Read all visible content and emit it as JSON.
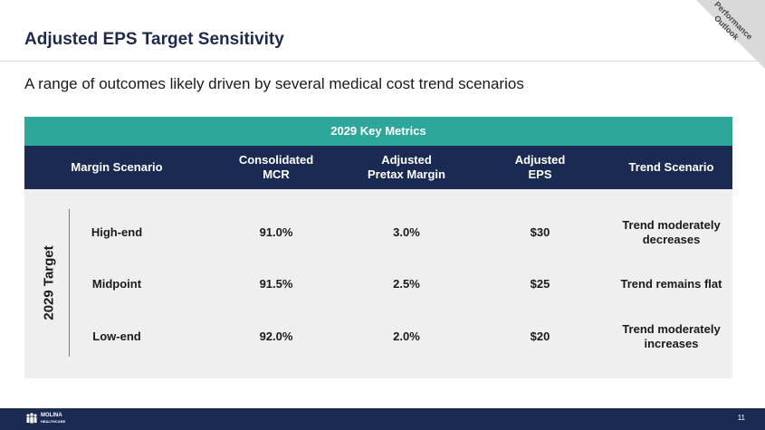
{
  "slide": {
    "title": "Adjusted EPS Target Sensitivity",
    "subtitle": "A range of outcomes likely driven by several medical cost trend scenarios",
    "corner_tab": {
      "line1": "Performance",
      "line2": "Outlook"
    },
    "page_number": "11"
  },
  "table": {
    "group_header": "2029 Key Metrics",
    "side_label": "2029 Target",
    "columns": [
      {
        "line1": "Margin Scenario",
        "line2": ""
      },
      {
        "line1": "Consolidated",
        "line2": "MCR"
      },
      {
        "line1": "Adjusted",
        "line2": "Pretax Margin"
      },
      {
        "line1": "Adjusted",
        "line2": "EPS"
      },
      {
        "line1": "Trend Scenario",
        "line2": ""
      }
    ],
    "rows": [
      {
        "scenario": "High-end",
        "mcr": "91.0%",
        "margin": "3.0%",
        "eps": "$30",
        "trend1": "Trend moderately",
        "trend2": "decreases"
      },
      {
        "scenario": "Midpoint",
        "mcr": "91.5%",
        "margin": "2.5%",
        "eps": "$25",
        "trend1": "Trend remains flat",
        "trend2": ""
      },
      {
        "scenario": "Low-end",
        "mcr": "92.0%",
        "margin": "2.0%",
        "eps": "$20",
        "trend1": "Trend moderately",
        "trend2": "increases"
      }
    ]
  },
  "footer": {
    "logo_line1": "MOLINA",
    "logo_line2": "HEALTHCARE"
  },
  "colors": {
    "navy": "#1b2a52",
    "teal": "#2ea79b",
    "body_gray": "#efefef",
    "corner_gray": "#d9d9d9"
  }
}
